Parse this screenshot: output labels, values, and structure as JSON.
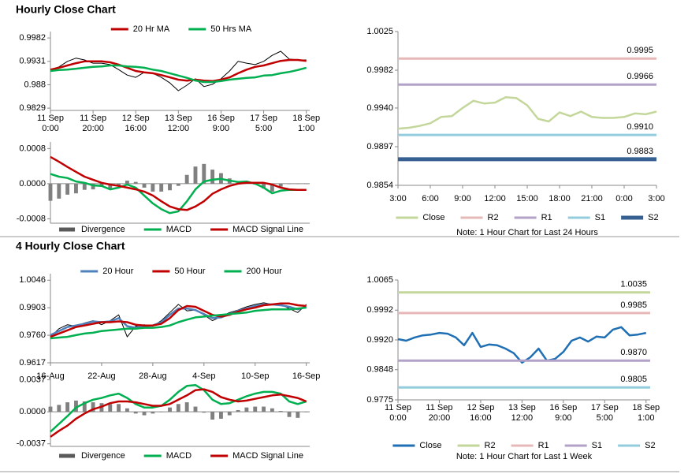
{
  "sections": [
    {
      "title": "Hourly Close Chart"
    },
    {
      "title": "4 Hourly Close Chart"
    }
  ],
  "chart_data": [
    {
      "type": "line",
      "legend": "top",
      "xlim": [
        0,
        30.4
      ],
      "xticks": [
        {
          "value": 0,
          "label": [
            "11 Sep",
            "0:00"
          ]
        },
        {
          "value": 5,
          "label": [
            "11 Sep",
            "20:00"
          ]
        },
        {
          "value": 10,
          "label": [
            "12 Sep",
            "16:00"
          ]
        },
        {
          "value": 15,
          "label": [
            "13 Sep",
            "12:00"
          ]
        },
        {
          "value": 20,
          "label": [
            "16 Sep",
            "9:00"
          ]
        },
        {
          "value": 25,
          "label": [
            "17 Sep",
            "5:00"
          ]
        },
        {
          "value": 30,
          "label": [
            "18 Sep",
            "1:00"
          ]
        }
      ],
      "ylim": [
        0.9824,
        0.9996
      ],
      "yticks": [
        0.9829,
        0.988,
        0.9931,
        0.9982
      ],
      "series": [
        {
          "color": "#000000",
          "values": [
            0.9913,
            0.9919,
            0.9931,
            0.9938,
            0.9934,
            0.9927,
            0.9927,
            0.9924,
            0.9913,
            0.9901,
            0.9896,
            0.9907,
            0.9905,
            0.9896,
            0.9884,
            0.9867,
            0.9879,
            0.9893,
            0.9876,
            0.9881,
            0.9893,
            0.991,
            0.9931,
            0.9927,
            0.9924,
            0.9931,
            0.9944,
            0.9953,
            0.9936,
            0.9934,
            0.9934
          ]
        },
        {
          "name": "20 Hr MA",
          "color": "#c00000",
          "values": [
            0.9913,
            0.9917,
            0.9922,
            0.9927,
            0.9931,
            0.9931,
            0.9931,
            0.9929,
            0.9924,
            0.9917,
            0.991,
            0.9907,
            0.9905,
            0.9901,
            0.9896,
            0.9891,
            0.9889,
            0.9891,
            0.9889,
            0.9888,
            0.9891,
            0.9896,
            0.9905,
            0.9913,
            0.9919,
            0.9922,
            0.9927,
            0.9932,
            0.9934,
            0.9934,
            0.9932
          ]
        },
        {
          "name": "50 Hrs MA",
          "color": "#00b050",
          "values": [
            0.991,
            0.9912,
            0.9913,
            0.9915,
            0.9917,
            0.9919,
            0.992,
            0.9922,
            0.9922,
            0.992,
            0.9919,
            0.9917,
            0.9913,
            0.991,
            0.9905,
            0.99,
            0.9895,
            0.9889,
            0.9886,
            0.9886,
            0.9888,
            0.9891,
            0.9893,
            0.9895,
            0.9896,
            0.99,
            0.9901,
            0.9905,
            0.9908,
            0.9912,
            0.9917
          ]
        }
      ]
    },
    {
      "type": "line",
      "legend": "bottom",
      "xlim": [
        0,
        30.4
      ],
      "ylim": [
        -0.0009,
        0.00095
      ],
      "yticks": [
        -0.0008,
        {
          "value": 0,
          "label": "0.0000"
        },
        0.0008
      ],
      "series": [
        {
          "name": "Divergence",
          "color": "#808080",
          "kind": "bar",
          "values": [
            -0.00039,
            -0.00034,
            -0.00025,
            -0.00022,
            -0.00014,
            -0.00013,
            -7e-05,
            -0.00011,
            -4e-05,
            7e-05,
            4e-05,
            -9e-05,
            -0.00018,
            -0.00018,
            -0.00015,
            -5e-05,
            0.0002,
            0.00039,
            0.00045,
            0.00032,
            0.00024,
            0.00012,
            4e-05,
            3e-05,
            -2e-05,
            -0.00011,
            -0.00018,
            -7e-05,
            -1e-05,
            0,
            0
          ]
        },
        {
          "name": "MACD",
          "color": "#00b050",
          "values": [
            0.00022,
            0.00016,
            0.00013,
            5e-05,
            2e-05,
            -4e-05,
            -5e-05,
            -0.00013,
            -9e-05,
            -2e-05,
            -9e-05,
            -0.00027,
            -0.00045,
            -0.00058,
            -0.00067,
            -0.00063,
            -0.0004,
            -0.00013,
            5e-05,
            9e-05,
            0.00011,
            7e-05,
            4e-05,
            5e-05,
            0,
            -9e-05,
            -0.00022,
            -0.00016,
            -0.00014,
            -0.00014,
            -0.00014
          ]
        },
        {
          "name": "MACD Signal Line",
          "color": "#c00000",
          "values": [
            0.00061,
            0.0005,
            0.00038,
            0.00027,
            0.00016,
            9e-05,
            2e-05,
            -2e-05,
            -5e-05,
            -9e-05,
            -0.00013,
            -0.00018,
            -0.00027,
            -0.0004,
            -0.00052,
            -0.00058,
            -0.0006,
            -0.00052,
            -0.0004,
            -0.00023,
            -0.00013,
            -5e-05,
            0,
            2e-05,
            2e-05,
            2e-05,
            -2e-05,
            -9e-05,
            -0.00013,
            -0.00014,
            -0.00014
          ]
        }
      ]
    },
    {
      "type": "line",
      "legend": "bottom",
      "note": "Note: 1 Hour Chart for Last 24 Hours",
      "x": [
        0,
        1,
        2,
        3,
        4,
        5,
        6,
        7,
        8,
        9,
        10,
        11,
        12,
        13,
        14,
        15,
        16,
        17,
        18,
        19,
        20,
        21,
        22,
        23,
        24
      ],
      "xlim": [
        0,
        24
      ],
      "xticks": [
        {
          "value": 0,
          "label": "3:00"
        },
        {
          "value": 3,
          "label": "6:00"
        },
        {
          "value": 6,
          "label": "9:00"
        },
        {
          "value": 9,
          "label": "12:00"
        },
        {
          "value": 12,
          "label": "15:00"
        },
        {
          "value": 15,
          "label": "18:00"
        },
        {
          "value": 18,
          "label": "21:00"
        },
        {
          "value": 21,
          "label": "0:00"
        },
        {
          "value": 24,
          "label": "3:00"
        }
      ],
      "ylim": [
        0.9854,
        1.0025
      ],
      "yticks": [
        0.9854,
        0.9897,
        {
          "value": 0.994,
          "label": "0.9940"
        },
        0.9982,
        1.0025
      ],
      "series": [
        {
          "name": "Close",
          "color": "#c4d79b",
          "values": [
            0.9917,
            0.9918,
            0.992,
            0.9923,
            0.993,
            0.9931,
            0.994,
            0.9948,
            0.9945,
            0.9946,
            0.9952,
            0.9951,
            0.9943,
            0.9928,
            0.9925,
            0.9935,
            0.9931,
            0.9936,
            0.993,
            0.9929,
            0.9929,
            0.993,
            0.9934,
            0.9933,
            0.9936
          ]
        },
        {
          "name": "R2",
          "color": "#e6b9b8",
          "value": 0.9995
        },
        {
          "name": "R1",
          "color": "#b3a2c7",
          "value": 0.9966
        },
        {
          "name": "S1",
          "color": "#93cddd",
          "value": 0.991,
          "value_label": "0.9910"
        },
        {
          "name": "S2",
          "color": "#376092",
          "value": 0.9883,
          "line_width": 5
        }
      ]
    },
    {
      "type": "line",
      "legend": "top",
      "xlim": [
        0,
        30.4
      ],
      "xticks": [
        {
          "value": 0,
          "label": "16-Aug"
        },
        {
          "value": 6,
          "label": "22-Aug"
        },
        {
          "value": 12,
          "label": "28-Aug"
        },
        {
          "value": 18,
          "label": "4-Sep"
        },
        {
          "value": 24,
          "label": "10-Sep"
        },
        {
          "value": 30,
          "label": "16-Sep"
        }
      ],
      "ylim": [
        0.9617,
        1.008
      ],
      "yticks": [
        0.9617,
        {
          "value": 0.976,
          "label": "0.9760"
        },
        0.9903,
        1.0046
      ],
      "series": [
        {
          "color": "#000000",
          "values": [
            0.9752,
            0.9794,
            0.9815,
            0.9807,
            0.9824,
            0.9836,
            0.9815,
            0.9836,
            0.9866,
            0.9752,
            0.9807,
            0.9815,
            0.9807,
            0.9836,
            0.9878,
            0.992,
            0.9887,
            0.9891,
            0.9866,
            0.9836,
            0.9857,
            0.9878,
            0.9891,
            0.9908,
            0.992,
            0.9929,
            0.992,
            0.992,
            0.9899,
            0.9878,
            0.992
          ]
        },
        {
          "name": "20 Hour",
          "color": "#4f81bd",
          "values": [
            0.9761,
            0.9782,
            0.9803,
            0.9811,
            0.982,
            0.9832,
            0.9828,
            0.9832,
            0.9849,
            0.9807,
            0.9799,
            0.9807,
            0.9811,
            0.9828,
            0.9866,
            0.9899,
            0.9899,
            0.9891,
            0.987,
            0.9849,
            0.9853,
            0.987,
            0.9887,
            0.9899,
            0.9912,
            0.992,
            0.992,
            0.9916,
            0.9908,
            0.9895,
            0.9908
          ]
        },
        {
          "name": "50 Hour",
          "color": "#c00000",
          "values": [
            0.9752,
            0.9769,
            0.9786,
            0.9803,
            0.9811,
            0.982,
            0.9828,
            0.9828,
            0.9832,
            0.9828,
            0.9815,
            0.9811,
            0.9811,
            0.982,
            0.9849,
            0.9891,
            0.9912,
            0.9908,
            0.9887,
            0.9866,
            0.9857,
            0.9866,
            0.9883,
            0.9895,
            0.9904,
            0.9916,
            0.992,
            0.9925,
            0.9925,
            0.9916,
            0.9912
          ]
        },
        {
          "name": "200 Hour",
          "color": "#00b050",
          "values": [
            0.9744,
            0.9748,
            0.9752,
            0.9761,
            0.9769,
            0.9773,
            0.9782,
            0.9786,
            0.979,
            0.9794,
            0.9794,
            0.9799,
            0.9799,
            0.9803,
            0.9811,
            0.9828,
            0.9841,
            0.9853,
            0.9857,
            0.9862,
            0.9866,
            0.987,
            0.9874,
            0.9878,
            0.9887,
            0.9891,
            0.9895,
            0.9895,
            0.9895,
            0.9899,
            0.9904
          ]
        }
      ]
    },
    {
      "type": "line",
      "legend": "bottom",
      "xlim": [
        0,
        30.4
      ],
      "ylim": [
        -0.004,
        0.0043
      ],
      "yticks": [
        -0.0037,
        {
          "value": 0,
          "label": "0.0000"
        },
        0.0037
      ],
      "series": [
        {
          "name": "Divergence",
          "color": "#808080",
          "kind": "bar",
          "values": [
            0.0006,
            0.0008,
            0.0011,
            0.0013,
            0.0012,
            0.0011,
            0.001,
            0.0009,
            0.0009,
            0.0004,
            -0.0002,
            -0.0004,
            -0.0002,
            0,
            0.0005,
            0.0009,
            0.0011,
            0.0006,
            -0.0001,
            -0.0009,
            -0.0008,
            -0.0004,
            0.0002,
            0.0005,
            0.0006,
            0.0006,
            0.0004,
            0.0001,
            -0.0006,
            -0.0007,
            0
          ]
        },
        {
          "name": "MACD",
          "color": "#00b050",
          "values": [
            -0.0023,
            -0.0014,
            -0.0005,
            0.0005,
            0.001,
            0.0014,
            0.0016,
            0.0019,
            0.0021,
            0.0016,
            0.0009,
            0.0005,
            0.0005,
            0.0007,
            0.0014,
            0.0023,
            0.003,
            0.0031,
            0.0025,
            0.0014,
            0.0009,
            0.001,
            0.0014,
            0.0018,
            0.0021,
            0.0023,
            0.0023,
            0.0021,
            0.0012,
            0.0009,
            0.0012
          ]
        },
        {
          "name": "MACD Signal Line",
          "color": "#c00000",
          "values": [
            -0.0029,
            -0.0022,
            -0.0016,
            -0.0008,
            -0.0002,
            0.0003,
            0.0006,
            0.001,
            0.0012,
            0.0012,
            0.0011,
            0.0009,
            0.0007,
            0.0007,
            0.0009,
            0.0014,
            0.0019,
            0.0025,
            0.0026,
            0.0023,
            0.0017,
            0.0014,
            0.0012,
            0.0013,
            0.0015,
            0.0017,
            0.0019,
            0.002,
            0.0018,
            0.0016,
            0.0012
          ]
        }
      ]
    },
    {
      "type": "line",
      "legend": "bottom",
      "note": "Note: 1 Hour Chart for Last 1 Week",
      "xlim": [
        0,
        30.5
      ],
      "xticks": [
        {
          "value": 0,
          "label": [
            "11 Sep",
            "0:00"
          ]
        },
        {
          "value": 5,
          "label": [
            "11 Sep",
            "20:00"
          ]
        },
        {
          "value": 10,
          "label": [
            "12 Sep",
            "16:00"
          ]
        },
        {
          "value": 15,
          "label": [
            "13 Sep",
            "12:00"
          ]
        },
        {
          "value": 20,
          "label": [
            "16 Sep",
            "9:00"
          ]
        },
        {
          "value": 25,
          "label": [
            "17 Sep",
            "5:00"
          ]
        },
        {
          "value": 30,
          "label": [
            "18 Sep",
            "1:00"
          ]
        }
      ],
      "ylim": [
        0.9775,
        1.0065
      ],
      "yticks": [
        0.9775,
        0.9848,
        {
          "value": 0.992,
          "label": "0.9920"
        },
        0.9992,
        1.0065
      ],
      "series": [
        {
          "name": "Close",
          "color": "#1f6fb4",
          "values": [
            0.9922,
            0.9918,
            0.9926,
            0.9931,
            0.9933,
            0.9937,
            0.9935,
            0.9926,
            0.9907,
            0.9937,
            0.9903,
            0.9909,
            0.9907,
            0.9899,
            0.9888,
            0.9865,
            0.9878,
            0.9899,
            0.987,
            0.9874,
            0.9891,
            0.9918,
            0.9926,
            0.9916,
            0.9928,
            0.9926,
            0.9945,
            0.9951,
            0.9931,
            0.9933,
            0.9937
          ]
        },
        {
          "name": "R2",
          "color": "#c3d69b",
          "value": 1.0035
        },
        {
          "name": "R1",
          "color": "#e6b9b8",
          "value": 0.9985
        },
        {
          "name": "S1",
          "color": "#b3a2c7",
          "value": 0.987,
          "value_label": "0.9870"
        },
        {
          "name": "S2",
          "color": "#93cddd",
          "value": 0.9805
        }
      ]
    }
  ]
}
